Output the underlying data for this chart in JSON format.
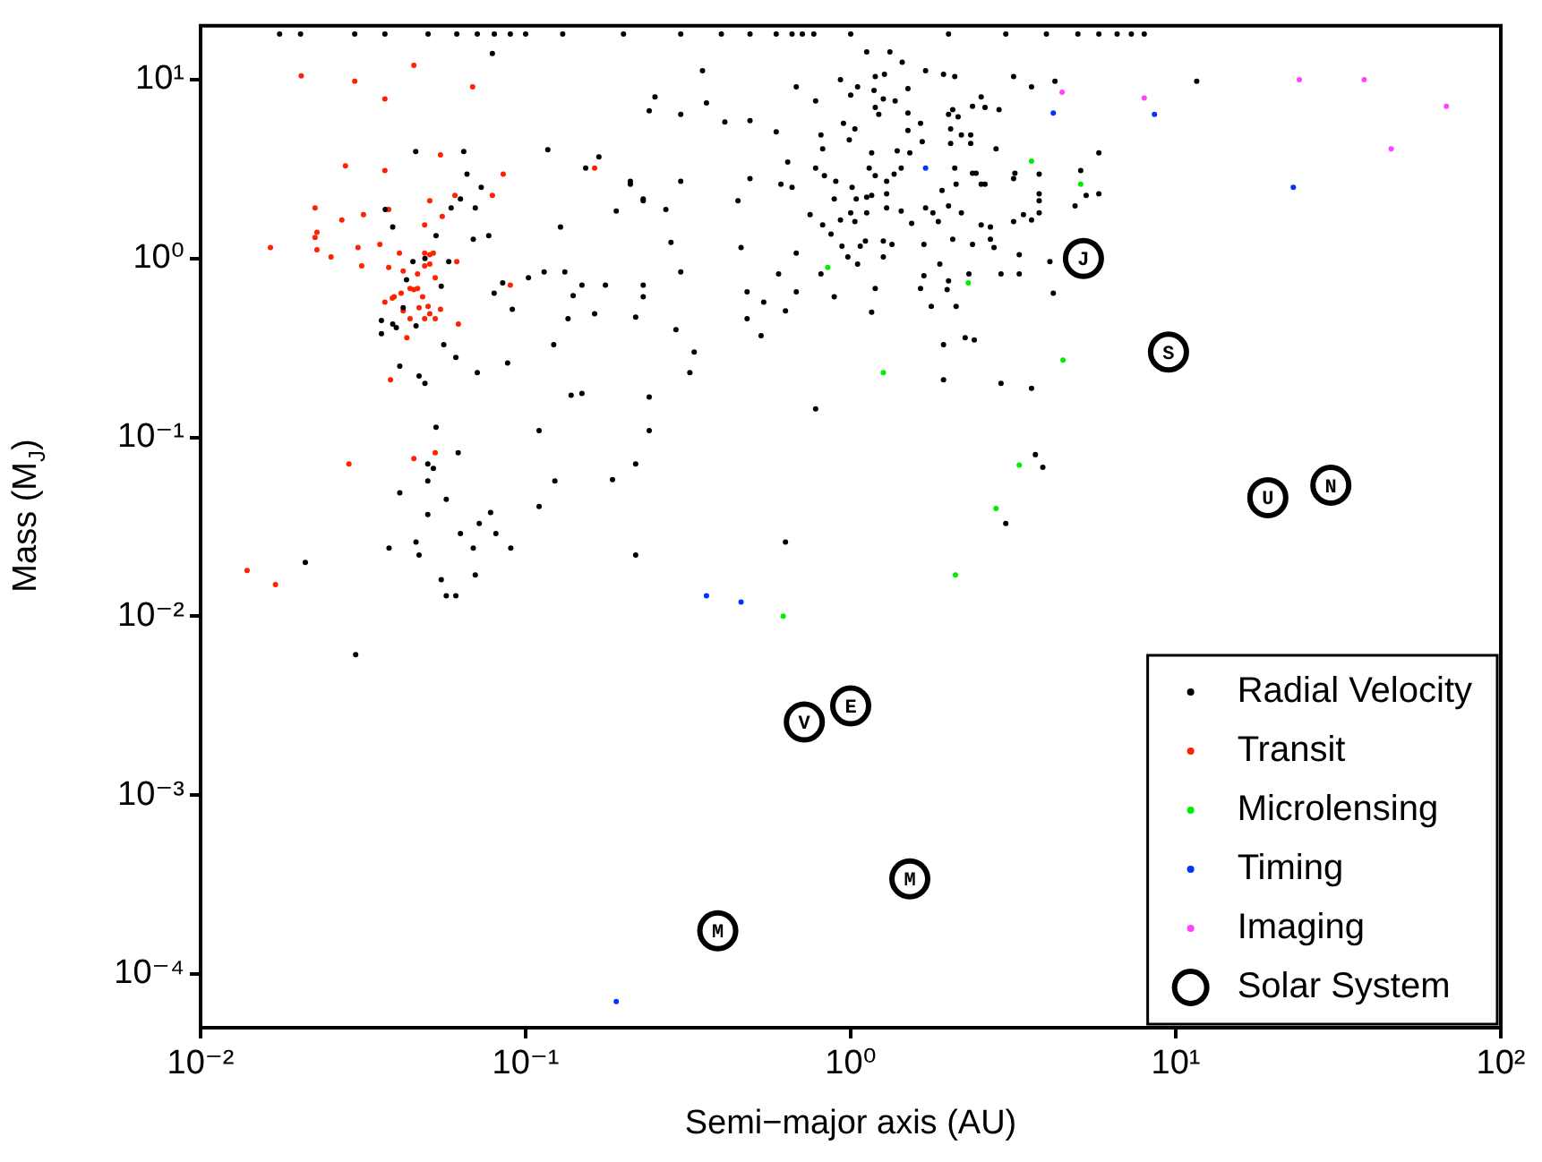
{
  "chart_data": {
    "type": "scatter",
    "xlabel": "Semi−major axis (AU)",
    "ylabel": "Mass (M$_{J}$)",
    "log": "xy",
    "grid": false,
    "legend": "bottom right",
    "marker": "circle",
    "xlim": [
      0.01,
      100
    ],
    "ylim": [
      5e-05,
      20
    ],
    "xticks": [
      {
        "value": 0.01,
        "label": "10⁻²"
      },
      {
        "value": 0.1,
        "label": "10⁻¹"
      },
      {
        "value": 1,
        "label": "10⁰"
      },
      {
        "value": 10,
        "label": "10¹"
      },
      {
        "value": 100,
        "label": "10²"
      }
    ],
    "yticks": [
      {
        "value": 0.0001,
        "label": "10⁻⁴"
      },
      {
        "value": 0.001,
        "label": "10⁻³"
      },
      {
        "value": 0.01,
        "label": "10⁻²"
      },
      {
        "value": 0.1,
        "label": "10⁻¹"
      },
      {
        "value": 1,
        "label": "10⁰"
      },
      {
        "value": 10,
        "label": "10¹"
      }
    ],
    "series": [
      {
        "name": "Radial Velocity",
        "color": "#000000",
        "x": [
          0.0175,
          0.0203,
          0.0298,
          0.0369,
          0.0501,
          0.0614,
          0.071,
          0.0801,
          0.0897,
          0.1,
          0.13,
          0.2,
          0.3,
          0.4,
          0.49,
          0.59,
          0.66,
          0.71,
          0.77,
          1.0,
          2.0,
          3.0,
          4.0,
          5.0,
          5.8,
          6.6,
          7.3,
          8.0,
          0.079,
          0.0459,
          0.0645,
          0.117,
          0.168,
          0.153,
          0.21,
          0.23,
          0.066,
          0.073,
          0.063,
          0.07,
          0.059,
          0.037,
          0.039,
          0.053,
          0.069,
          0.077,
          0.19,
          0.128,
          0.058,
          0.049,
          0.045,
          0.043,
          0.055,
          0.085,
          0.102,
          0.114,
          0.132,
          0.149,
          0.176,
          0.08,
          0.14,
          0.23,
          0.091,
          0.163,
          0.135,
          0.218,
          0.042,
          0.046,
          0.04,
          0.039,
          0.036,
          0.036,
          0.056,
          0.122,
          0.061,
          0.088,
          0.041,
          0.071,
          0.047,
          0.049,
          0.138,
          0.149,
          0.053,
          0.11,
          0.062,
          0.05,
          0.052,
          0.05,
          0.218,
          0.123,
          0.185,
          0.041,
          0.057,
          0.05,
          0.078,
          0.072,
          0.063,
          0.081,
          0.11,
          0.038,
          0.046,
          0.047,
          0.069,
          0.09,
          0.021,
          0.218,
          0.055,
          0.07,
          0.057,
          0.061,
          0.03,
          1.12,
          1.32,
          1.44,
          0.35,
          1.7,
          1.93,
          2.09,
          3.17,
          3.6,
          4.25,
          0.93,
          1.19,
          1.27,
          0.68,
          1.05,
          1.18,
          1.5,
          0.25,
          0.24,
          0.36,
          0.3,
          0.41,
          0.49,
          0.59,
          0.78,
          1.0,
          1.26,
          1.37,
          1.19,
          1.22,
          1.5,
          2.0,
          2.06,
          2.14,
          2.37,
          2.52,
          2.59,
          2.86,
          0.95,
          1.03,
          0.99,
          0.81,
          0.82,
          1.5,
          1.64,
          2.03,
          2.19,
          2.34,
          2.03,
          2.34,
          2.8,
          1.66,
          1.52,
          1.16,
          1.39,
          0.64,
          0.49,
          0.21,
          0.3,
          0.61,
          0.66,
          0.78,
          0.83,
          0.9,
          1.01,
          1.14,
          1.19,
          1.29,
          1.36,
          1.43,
          1.29,
          1.12,
          1.16,
          1.04,
          0.89,
          2.09,
          2.11,
          2.43,
          2.52,
          2.59,
          2.37,
          1.91,
          3.2,
          3.17,
          3.8,
          3.8,
          3.8,
          5.1,
          5.8,
          5.3,
          4.9,
          5.8,
          0.23,
          0.27,
          0.45,
          0.75,
          0.82,
          0.87,
          0.93,
          1.0,
          1.03,
          1.12,
          1.29,
          1.43,
          1.54,
          1.7,
          1.79,
          1.86,
          2.0,
          2.19,
          2.52,
          2.69,
          3.17,
          3.4,
          3.6,
          3.8,
          0.94,
          1.07,
          1.11,
          1.26,
          1.34,
          0.98,
          1.05,
          1.26,
          1.68,
          2.06,
          2.37,
          2.69,
          2.76,
          3.3,
          4.1,
          0.28,
          0.46,
          0.68,
          0.3,
          0.6,
          0.81,
          1.88,
          1.68,
          2.0,
          2.31,
          2.9,
          3.3,
          0.23,
          0.48,
          0.54,
          0.68,
          0.89,
          1.19,
          1.64,
          1.98,
          4.2,
          0.29,
          0.48,
          0.53,
          0.63,
          1.16,
          1.77,
          2.11,
          0.33,
          0.32,
          1.93,
          2.25,
          2.4,
          0.24,
          0.24,
          0.78,
          1.93,
          2.9,
          3.6,
          3.7,
          3.9,
          3.0,
          0.63,
          11.6
        ],
        "values": [
          18,
          18,
          18,
          18,
          18,
          18,
          18,
          18,
          18,
          18,
          18,
          18,
          18,
          18,
          18,
          18,
          18,
          18,
          18,
          18,
          18,
          18,
          18,
          18,
          18,
          18,
          18,
          18,
          14,
          3.96,
          3.96,
          4.06,
          3.7,
          3.2,
          2.7,
          2.15,
          2.96,
          2.5,
          2.15,
          1.92,
          1.92,
          1.88,
          1.5,
          1.34,
          1.28,
          1.34,
          1.84,
          1.5,
          0.96,
          1.0,
          0.96,
          0.76,
          0.7,
          0.73,
          0.78,
          0.84,
          0.84,
          0.71,
          0.71,
          0.64,
          0.62,
          0.61,
          0.52,
          0.49,
          0.46,
          0.47,
          0.53,
          0.42,
          0.41,
          0.43,
          0.45,
          0.38,
          0.33,
          0.33,
          0.28,
          0.26,
          0.25,
          0.23,
          0.22,
          0.2,
          0.172,
          0.176,
          0.114,
          0.109,
          0.082,
          0.071,
          0.067,
          0.057,
          0.071,
          0.057,
          0.058,
          0.049,
          0.045,
          0.037,
          0.038,
          0.033,
          0.029,
          0.029,
          0.041,
          0.024,
          0.026,
          0.022,
          0.024,
          0.024,
          0.02,
          0.022,
          0.016,
          0.017,
          0.013,
          0.013,
          0.0061,
          14.3,
          14.3,
          12.5,
          11.2,
          11.2,
          10.7,
          10.4,
          10.4,
          9.1,
          9.8,
          10,
          10.4,
          10.7,
          9.1,
          9.1,
          8.7,
          8.9,
          8.0,
          6.7,
          7.4,
          6.4,
          5.8,
          5.9,
          5.1,
          7.6,
          8.2,
          7.8,
          7.6,
          7.0,
          6.4,
          6.5,
          6.4,
          6.8,
          6.2,
          7.1,
          8.0,
          7.0,
          6.8,
          5.7,
          5.3,
          4.6,
          4.9,
          4.1,
          5.2,
          5.7,
          5.3,
          4.9,
          4.9,
          4.4,
          4.4,
          4.1,
          4.5,
          3.9,
          3.9,
          4.0,
          3.46,
          2.8,
          2.6,
          2.7,
          2.6,
          2.5,
          3.2,
          2.9,
          2.7,
          2.5,
          3.2,
          2.9,
          2.7,
          2.96,
          3.2,
          2.3,
          2.2,
          2.25,
          2.15,
          2.15,
          3.2,
          2.6,
          3.0,
          2.6,
          2.6,
          3.0,
          2.4,
          3.0,
          2.8,
          2.96,
          2.3,
          2.1,
          3.1,
          3.9,
          2.25,
          1.97,
          2.3,
          2.1,
          1.88,
          2.1,
          1.76,
          1.54,
          1.37,
          1.64,
          1.8,
          1.61,
          1.8,
          1.92,
          1.84,
          1.57,
          1.92,
          1.8,
          1.61,
          1.97,
          1.8,
          1.54,
          1.5,
          1.61,
          1.76,
          1.64,
          1.8,
          1.17,
          1.17,
          1.25,
          1.25,
          1.2,
          1.02,
          0.93,
          1.02,
          1.2,
          1.28,
          1.2,
          1.28,
          1.15,
          1.05,
          0.96,
          1.23,
          1.15,
          1.07,
          0.84,
          0.82,
          0.82,
          0.93,
          0.8,
          0.75,
          0.82,
          0.82,
          0.82,
          0.71,
          0.65,
          0.57,
          0.65,
          0.61,
          0.68,
          0.68,
          0.67,
          0.64,
          0.4,
          0.46,
          0.37,
          0.51,
          0.5,
          0.54,
          0.54,
          0.3,
          0.23,
          0.33,
          0.36,
          0.35,
          0.168,
          0.109,
          0.144,
          0.21,
          0.2,
          0.188,
          0.08,
          0.068,
          0.033,
          0.026,
          9.8
        ]
      },
      {
        "name": "Transit",
        "color": "#ff2200",
        "x": [
          0.0204,
          0.0298,
          0.0453,
          0.0369,
          0.0687,
          0.0279,
          0.0369,
          0.0547,
          0.0853,
          0.079,
          0.163,
          0.0606,
          0.0507,
          0.0225,
          0.0317,
          0.0272,
          0.0228,
          0.0225,
          0.0228,
          0.0164,
          0.0305,
          0.0356,
          0.0489,
          0.0554,
          0.0379,
          0.0252,
          0.0313,
          0.0409,
          0.0379,
          0.042,
          0.0489,
          0.0507,
          0.052,
          0.0489,
          0.0507,
          0.0614,
          0.0465,
          0.0527,
          0.0441,
          0.0465,
          0.0453,
          0.0482,
          0.0501,
          0.0414,
          0.0394,
          0.0389,
          0.0369,
          0.047,
          0.0547,
          0.042,
          0.0507,
          0.0489,
          0.0441,
          0.0527,
          0.0897,
          0.0621,
          0.0431,
          0.0384,
          0.0286,
          0.0453,
          0.0527,
          0.0139,
          0.017
        ],
        "values": [
          10.5,
          9.8,
          12.0,
          7.8,
          9.1,
          3.3,
          3.1,
          3.8,
          2.96,
          2.25,
          3.2,
          2.25,
          2.1,
          1.92,
          1.76,
          1.64,
          1.4,
          1.31,
          1.12,
          1.15,
          1.15,
          1.2,
          1.54,
          1.72,
          1.88,
          1.02,
          0.91,
          1.07,
          0.89,
          0.85,
          1.07,
          1.05,
          1.07,
          0.91,
          0.93,
          0.96,
          0.82,
          0.78,
          0.68,
          0.68,
          0.67,
          0.61,
          0.54,
          0.64,
          0.61,
          0.6,
          0.57,
          0.53,
          0.52,
          0.51,
          0.49,
          0.46,
          0.46,
          0.46,
          0.71,
          0.43,
          0.36,
          0.21,
          0.071,
          0.076,
          0.082,
          0.018,
          0.015
        ]
      },
      {
        "name": "Microlensing",
        "color": "#00ee00",
        "x": [
          3.6,
          5.1,
          0.85,
          2.3,
          4.5,
          1.26,
          3.3,
          2.8,
          2.1,
          0.62
        ],
        "values": [
          3.5,
          2.6,
          0.89,
          0.73,
          0.27,
          0.23,
          0.07,
          0.04,
          0.017,
          0.01
        ]
      },
      {
        "name": "Timing",
        "color": "#0033ff",
        "x": [
          4.2,
          8.6,
          23,
          1.7,
          0.36,
          0.46,
          0.19
        ],
        "values": [
          6.5,
          6.4,
          2.5,
          3.2,
          0.013,
          0.012,
          7e-05
        ]
      },
      {
        "name": "Imaging",
        "color": "#ff44ff",
        "x": [
          4.47,
          8.0,
          24,
          38,
          68,
          46
        ],
        "values": [
          8.5,
          7.9,
          10,
          10,
          7.1,
          4.1
        ]
      },
      {
        "name": "Solar System",
        "color": "#000000",
        "x": [
          5.2,
          9.5,
          19.2,
          30,
          0.72,
          1.0,
          1.52,
          0.39
        ],
        "values": [
          1.0,
          0.3,
          0.046,
          0.054,
          0.00256,
          0.00315,
          0.00034,
          0.000174
        ],
        "value_labels": [
          "J",
          "S",
          "U",
          "N",
          "V",
          "E",
          "M",
          "M"
        ]
      }
    ]
  }
}
